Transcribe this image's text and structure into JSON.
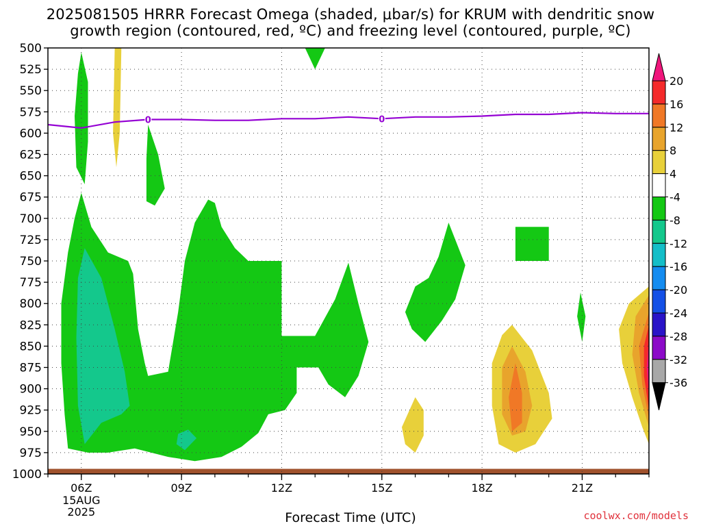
{
  "title_line1": "2025081505 HRRR Forecast Omega (shaded, μbar/s) for KRUM with dendritic snow",
  "title_line2": "growth region (contoured, red, ºC) and freezing level (contoured, purple, ºC)",
  "credit": "coolwx.com/models",
  "chart_data": {
    "type": "heatmap",
    "xlabel": "Forecast Time (UTC)",
    "ylabel": "",
    "x_ticks": [
      "06Z",
      "09Z",
      "12Z",
      "15Z",
      "18Z",
      "21Z"
    ],
    "x_date_label": [
      "15AUG",
      "2025"
    ],
    "x_range_hours": [
      5,
      23
    ],
    "y_ticks": [
      500,
      525,
      550,
      575,
      600,
      625,
      650,
      675,
      700,
      725,
      750,
      775,
      800,
      825,
      850,
      875,
      900,
      925,
      950,
      975,
      1000
    ],
    "y_range_hPa": [
      500,
      1000
    ],
    "grid": "dotted",
    "colorbar": {
      "labels": [
        "20",
        "16",
        "12",
        "8",
        "4",
        "-4",
        "-8",
        "-12",
        "-16",
        "-20",
        "-24",
        "-28",
        "-32",
        "-36"
      ],
      "colors": [
        "#f0167c",
        "#f42a2a",
        "#f07826",
        "#e8a42c",
        "#e8d03a",
        "#ffffff",
        "#14c814",
        "#14c88c",
        "#14bec8",
        "#148cf0",
        "#1450e6",
        "#2a14c8",
        "#8c0ac8",
        "#a8a8a8",
        "#000000"
      ]
    },
    "freezing_level": {
      "label": "0",
      "color": "#9400d3",
      "x_hours": [
        5,
        6,
        7,
        8,
        9,
        10,
        11,
        12,
        13,
        14,
        15,
        16,
        17,
        18,
        19,
        20,
        21,
        22,
        23
      ],
      "pressure_hPa": [
        590,
        594,
        587,
        584,
        584,
        585,
        585,
        583,
        583,
        581,
        583,
        581,
        581,
        580,
        578,
        578,
        576,
        577,
        577
      ]
    },
    "omega_regions": [
      {
        "value_range": [
          -8,
          -4
        ],
        "color": "#14c814",
        "points": [
          [
            6,
            505
          ],
          [
            6.2,
            540
          ],
          [
            6.2,
            610
          ],
          [
            6.1,
            660
          ],
          [
            5.85,
            640
          ],
          [
            5.8,
            580
          ],
          [
            5.9,
            530
          ]
        ]
      },
      {
        "value_range": [
          -8,
          -4
        ],
        "color": "#14c814",
        "points": [
          [
            6,
            670
          ],
          [
            6.3,
            710
          ],
          [
            6.8,
            740
          ],
          [
            7.4,
            750
          ],
          [
            7.55,
            765
          ],
          [
            7.7,
            830
          ],
          [
            7.9,
            870
          ],
          [
            8,
            885
          ],
          [
            8.6,
            880
          ],
          [
            8.9,
            810
          ],
          [
            9.1,
            750
          ],
          [
            9.4,
            705
          ],
          [
            9.8,
            678
          ],
          [
            10.0,
            682
          ],
          [
            10.2,
            710
          ],
          [
            10.6,
            735
          ],
          [
            11.0,
            750
          ],
          [
            12.0,
            750
          ],
          [
            12.0,
            838
          ],
          [
            13.0,
            838
          ],
          [
            13.6,
            795
          ],
          [
            14,
            752
          ],
          [
            14.3,
            800
          ],
          [
            14.6,
            845
          ],
          [
            14.3,
            885
          ],
          [
            13.9,
            910
          ],
          [
            13.4,
            895
          ],
          [
            13.1,
            875
          ],
          [
            12.45,
            875
          ],
          [
            12.45,
            905
          ],
          [
            12.1,
            925
          ],
          [
            11.6,
            930
          ],
          [
            11.3,
            952
          ],
          [
            10.8,
            968
          ],
          [
            10.2,
            980
          ],
          [
            9.4,
            985
          ],
          [
            8.6,
            980
          ],
          [
            7.6,
            970
          ],
          [
            6.8,
            975
          ],
          [
            6.2,
            975
          ],
          [
            5.6,
            970
          ],
          [
            5.5,
            930
          ],
          [
            5.4,
            870
          ],
          [
            5.4,
            800
          ],
          [
            5.6,
            740
          ],
          [
            5.8,
            700
          ]
        ]
      },
      {
        "value_range": [
          -12,
          -8
        ],
        "color": "#14c88c",
        "points": [
          [
            6.1,
            735
          ],
          [
            6.6,
            770
          ],
          [
            7.0,
            830
          ],
          [
            7.3,
            880
          ],
          [
            7.45,
            920
          ],
          [
            7.2,
            930
          ],
          [
            6.6,
            940
          ],
          [
            6.1,
            965
          ],
          [
            5.9,
            920
          ],
          [
            5.85,
            840
          ],
          [
            5.9,
            770
          ]
        ]
      },
      {
        "value_range": [
          -12,
          -8
        ],
        "color": "#14c88c",
        "points": [
          [
            8.9,
            953
          ],
          [
            9.2,
            948
          ],
          [
            9.45,
            958
          ],
          [
            9.1,
            972
          ],
          [
            8.85,
            965
          ]
        ]
      },
      {
        "value_range": [
          -8,
          -4
        ],
        "color": "#14c814",
        "points": [
          [
            8.0,
            590
          ],
          [
            8.3,
            625
          ],
          [
            8.5,
            665
          ],
          [
            8.2,
            685
          ],
          [
            7.95,
            680
          ],
          [
            7.95,
            630
          ]
        ]
      },
      {
        "value_range": [
          -8,
          -4
        ],
        "color": "#14c814",
        "points": [
          [
            12.7,
            500
          ],
          [
            13.3,
            500
          ],
          [
            13.0,
            525
          ]
        ]
      },
      {
        "value_range": [
          -8,
          -4
        ],
        "color": "#14c814",
        "points": [
          [
            17.0,
            705
          ],
          [
            17.5,
            755
          ],
          [
            17.2,
            795
          ],
          [
            16.8,
            820
          ],
          [
            16.3,
            845
          ],
          [
            15.9,
            830
          ],
          [
            15.7,
            810
          ],
          [
            16.0,
            780
          ],
          [
            16.4,
            770
          ],
          [
            16.7,
            745
          ]
        ]
      },
      {
        "value_range": [
          -8,
          -4
        ],
        "color": "#14c814",
        "points": [
          [
            19.0,
            710
          ],
          [
            20.0,
            710
          ],
          [
            20.0,
            750
          ],
          [
            19.0,
            750
          ]
        ]
      },
      {
        "value_range": [
          -8,
          -4
        ],
        "color": "#14c814",
        "points": [
          [
            20.95,
            787
          ],
          [
            21.1,
            815
          ],
          [
            21.0,
            845
          ],
          [
            20.85,
            815
          ]
        ]
      },
      {
        "value_range": [
          4,
          8
        ],
        "color": "#e8d03a",
        "points": [
          [
            7.0,
            500
          ],
          [
            7.2,
            500
          ],
          [
            7.15,
            600
          ],
          [
            7.05,
            640
          ],
          [
            6.95,
            600
          ]
        ]
      },
      {
        "value_range": [
          4,
          8
        ],
        "color": "#e8d03a",
        "points": [
          [
            16.0,
            910
          ],
          [
            16.25,
            925
          ],
          [
            16.25,
            955
          ],
          [
            16.0,
            975
          ],
          [
            15.7,
            965
          ],
          [
            15.6,
            945
          ]
        ]
      },
      {
        "value_range": [
          4,
          8
        ],
        "color": "#e8d03a",
        "points": [
          [
            18.9,
            825
          ],
          [
            19.5,
            855
          ],
          [
            20.0,
            905
          ],
          [
            20.1,
            935
          ],
          [
            19.6,
            965
          ],
          [
            19.0,
            975
          ],
          [
            18.5,
            965
          ],
          [
            18.3,
            920
          ],
          [
            18.3,
            870
          ],
          [
            18.6,
            837
          ]
        ]
      },
      {
        "value_range": [
          8,
          12
        ],
        "color": "#e8a42c",
        "points": [
          [
            18.9,
            850
          ],
          [
            19.3,
            880
          ],
          [
            19.5,
            920
          ],
          [
            19.3,
            950
          ],
          [
            18.9,
            955
          ],
          [
            18.6,
            930
          ],
          [
            18.6,
            875
          ]
        ]
      },
      {
        "value_range": [
          12,
          16
        ],
        "color": "#f07826",
        "points": [
          [
            19.0,
            870
          ],
          [
            19.2,
            905
          ],
          [
            19.2,
            940
          ],
          [
            18.9,
            950
          ],
          [
            18.8,
            910
          ]
        ]
      },
      {
        "value_range": [
          4,
          8
        ],
        "color": "#e8d03a",
        "points": [
          [
            23.0,
            780
          ],
          [
            23.0,
            965
          ],
          [
            22.8,
            945
          ],
          [
            22.5,
            910
          ],
          [
            22.2,
            870
          ],
          [
            22.1,
            830
          ],
          [
            22.4,
            800
          ]
        ]
      },
      {
        "value_range": [
          8,
          12
        ],
        "color": "#e8a42c",
        "points": [
          [
            23.0,
            790
          ],
          [
            23.0,
            945
          ],
          [
            22.7,
            905
          ],
          [
            22.5,
            860
          ],
          [
            22.6,
            815
          ]
        ]
      },
      {
        "value_range": [
          12,
          16
        ],
        "color": "#f07826",
        "points": [
          [
            23.0,
            810
          ],
          [
            23.0,
            935
          ],
          [
            22.8,
            895
          ],
          [
            22.7,
            850
          ]
        ]
      },
      {
        "value_range": [
          16,
          20
        ],
        "color": "#f42a2a",
        "points": [
          [
            23.0,
            825
          ],
          [
            23.0,
            925
          ],
          [
            22.85,
            885
          ],
          [
            22.85,
            850
          ]
        ]
      },
      {
        "value_range": [
          20,
          24
        ],
        "color": "#f0167c",
        "points": [
          [
            23.0,
            840
          ],
          [
            23.0,
            910
          ],
          [
            22.93,
            875
          ]
        ]
      }
    ],
    "surface": {
      "color": "#a0522d",
      "pressure_hPa": [
        994,
        1000
      ]
    }
  }
}
